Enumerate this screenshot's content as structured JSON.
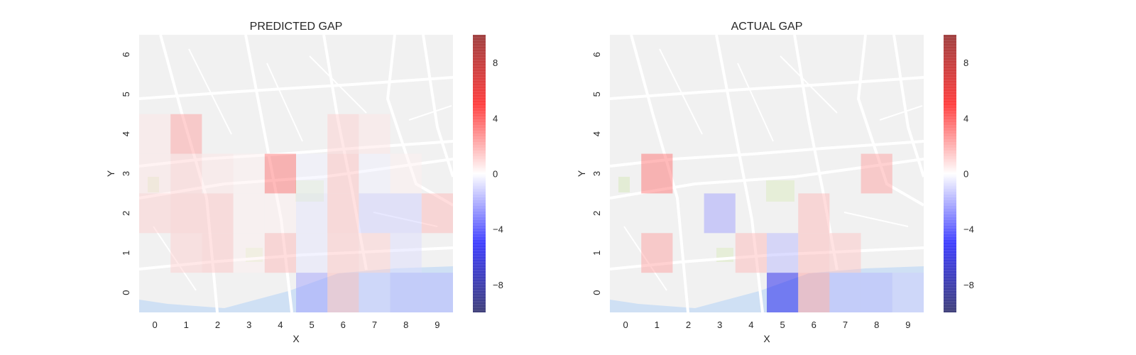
{
  "chart_data": [
    {
      "type": "heatmap",
      "title": "PREDICTED GAP",
      "xlabel": "X",
      "ylabel": "Y",
      "x": [
        0,
        1,
        2,
        3,
        4,
        5,
        6,
        7,
        8,
        9
      ],
      "y": [
        0,
        1,
        2,
        3,
        4,
        5,
        6
      ],
      "xlim": [
        -0.5,
        9.5
      ],
      "ylim": [
        -0.5,
        6.5
      ],
      "background": "street map",
      "colormap": "seismic",
      "clim": [
        -10,
        10
      ],
      "colorbar_ticks": [
        -8,
        -4,
        0,
        4,
        8
      ],
      "colorbar_tick_labels": [
        "−8",
        "−4",
        "0",
        "4",
        "8"
      ],
      "cells": [
        {
          "x": 0,
          "y": 4,
          "value": 0.5
        },
        {
          "x": 1,
          "y": 4,
          "value": 2.0
        },
        {
          "x": 6,
          "y": 4,
          "value": 1.0
        },
        {
          "x": 7,
          "y": 4,
          "value": 0.5
        },
        {
          "x": 0,
          "y": 3,
          "value": 0.5
        },
        {
          "x": 1,
          "y": 3,
          "value": 1.0
        },
        {
          "x": 2,
          "y": 3,
          "value": 0.5
        },
        {
          "x": 3,
          "y": 3,
          "value": 0.3
        },
        {
          "x": 4,
          "y": 3,
          "value": 3.0
        },
        {
          "x": 5,
          "y": 3,
          "value": -0.3
        },
        {
          "x": 6,
          "y": 3,
          "value": 1.3
        },
        {
          "x": 7,
          "y": 3,
          "value": -0.3
        },
        {
          "x": 8,
          "y": 3,
          "value": 0.3
        },
        {
          "x": 0,
          "y": 2,
          "value": 1.0
        },
        {
          "x": 1,
          "y": 2,
          "value": 1.2
        },
        {
          "x": 2,
          "y": 2,
          "value": 1.2
        },
        {
          "x": 3,
          "y": 2,
          "value": 0.3
        },
        {
          "x": 4,
          "y": 2,
          "value": 0.3
        },
        {
          "x": 5,
          "y": 2,
          "value": -0.5
        },
        {
          "x": 6,
          "y": 2,
          "value": 1.3
        },
        {
          "x": 7,
          "y": 2,
          "value": -1.0
        },
        {
          "x": 8,
          "y": 2,
          "value": -1.0
        },
        {
          "x": 9,
          "y": 2,
          "value": 1.5
        },
        {
          "x": 1,
          "y": 1,
          "value": 1.0
        },
        {
          "x": 2,
          "y": 1,
          "value": 1.2
        },
        {
          "x": 3,
          "y": 1,
          "value": 0.3
        },
        {
          "x": 4,
          "y": 1,
          "value": 1.5
        },
        {
          "x": 5,
          "y": 1,
          "value": -0.5
        },
        {
          "x": 6,
          "y": 1,
          "value": 1.2
        },
        {
          "x": 7,
          "y": 1,
          "value": 1.0
        },
        {
          "x": 8,
          "y": 1,
          "value": -0.7
        },
        {
          "x": 5,
          "y": 0,
          "value": -2.0
        },
        {
          "x": 6,
          "y": 0,
          "value": 1.5
        },
        {
          "x": 7,
          "y": 0,
          "value": -1.0
        },
        {
          "x": 8,
          "y": 0,
          "value": -1.5
        },
        {
          "x": 9,
          "y": 0,
          "value": -1.5
        }
      ]
    },
    {
      "type": "heatmap",
      "title": "ACTUAL GAP",
      "xlabel": "X",
      "ylabel": "Y",
      "x": [
        0,
        1,
        2,
        3,
        4,
        5,
        6,
        7,
        8,
        9
      ],
      "y": [
        0,
        1,
        2,
        3,
        4,
        5,
        6
      ],
      "xlim": [
        -0.5,
        9.5
      ],
      "ylim": [
        -0.5,
        6.5
      ],
      "background": "street map",
      "colormap": "seismic",
      "clim": [
        -10,
        10
      ],
      "colorbar_ticks": [
        -8,
        -4,
        0,
        4,
        8
      ],
      "colorbar_tick_labels": [
        "−8",
        "−4",
        "0",
        "4",
        "8"
      ],
      "cells": [
        {
          "x": 1,
          "y": 3,
          "value": 3.0
        },
        {
          "x": 8,
          "y": 3,
          "value": 2.0
        },
        {
          "x": 3,
          "y": 2,
          "value": -2.0
        },
        {
          "x": 6,
          "y": 2,
          "value": 1.5
        },
        {
          "x": 1,
          "y": 1,
          "value": 2.0
        },
        {
          "x": 4,
          "y": 1,
          "value": 1.5
        },
        {
          "x": 5,
          "y": 1,
          "value": -1.5
        },
        {
          "x": 6,
          "y": 1,
          "value": 1.5
        },
        {
          "x": 7,
          "y": 1,
          "value": 1.2
        },
        {
          "x": 5,
          "y": 0,
          "value": -5.5
        },
        {
          "x": 6,
          "y": 0,
          "value": 2.0
        },
        {
          "x": 7,
          "y": 0,
          "value": -1.5
        },
        {
          "x": 8,
          "y": 0,
          "value": -1.5
        },
        {
          "x": 9,
          "y": 0,
          "value": -1.0
        }
      ]
    }
  ]
}
